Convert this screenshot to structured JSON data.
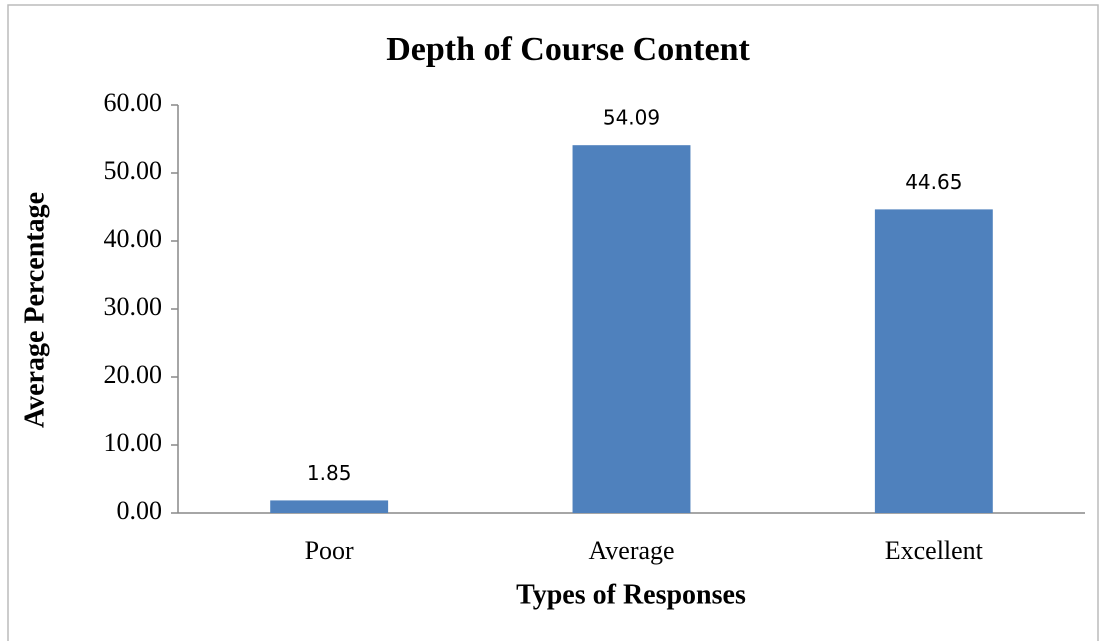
{
  "chart_data": {
    "type": "bar",
    "title": "Depth of Course Content",
    "x_label": "Types of Responses",
    "y_label": "Average Percentage",
    "categories": [
      "Poor",
      "Average",
      "Excellent"
    ],
    "values": [
      1.85,
      54.09,
      44.65
    ],
    "color": "#4f81bd",
    "ylim": [
      0,
      60
    ],
    "yticks": [
      {
        "value": 0,
        "label": "0.00"
      },
      {
        "value": 10,
        "label": "10.00"
      },
      {
        "value": 20,
        "label": "20.00"
      },
      {
        "value": 30,
        "label": "30.00"
      },
      {
        "value": 40,
        "label": "40.00"
      },
      {
        "value": 50,
        "label": "50.00"
      },
      {
        "value": 60,
        "label": "60.00"
      }
    ],
    "grid": false
  }
}
